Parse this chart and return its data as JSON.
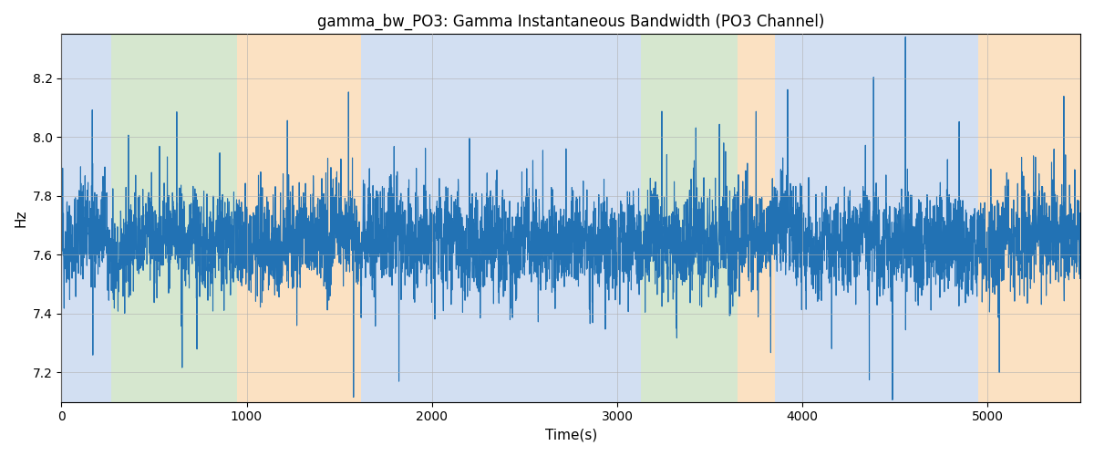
{
  "title": "gamma_bw_PO3: Gamma Instantaneous Bandwidth (PO3 Channel)",
  "xlabel": "Time(s)",
  "ylabel": "Hz",
  "ylim": [
    7.1,
    8.35
  ],
  "xlim": [
    0,
    5500
  ],
  "line_color": "#2272b4",
  "line_width": 0.8,
  "grid_color": "#b0b0b0",
  "regions": [
    {
      "start": 0,
      "end": 270,
      "color": "#aec6e8",
      "alpha": 0.55
    },
    {
      "start": 270,
      "end": 950,
      "color": "#b5d4a8",
      "alpha": 0.55
    },
    {
      "start": 950,
      "end": 1620,
      "color": "#f9c990",
      "alpha": 0.55
    },
    {
      "start": 1620,
      "end": 3080,
      "color": "#aec6e8",
      "alpha": 0.55
    },
    {
      "start": 3080,
      "end": 3130,
      "color": "#aec6e8",
      "alpha": 0.55
    },
    {
      "start": 3130,
      "end": 3650,
      "color": "#b5d4a8",
      "alpha": 0.55
    },
    {
      "start": 3650,
      "end": 3850,
      "color": "#f9c990",
      "alpha": 0.55
    },
    {
      "start": 3850,
      "end": 4950,
      "color": "#aec6e8",
      "alpha": 0.55
    },
    {
      "start": 4950,
      "end": 5500,
      "color": "#f9c990",
      "alpha": 0.55
    }
  ],
  "xticks": [
    0,
    1000,
    2000,
    3000,
    4000,
    5000
  ],
  "yticks": [
    7.2,
    7.4,
    7.6,
    7.8,
    8.0,
    8.2
  ],
  "signal_mean": 7.645,
  "signal_std": 0.085,
  "spike_std": 0.28,
  "n_spikes": 120,
  "seed": 17
}
